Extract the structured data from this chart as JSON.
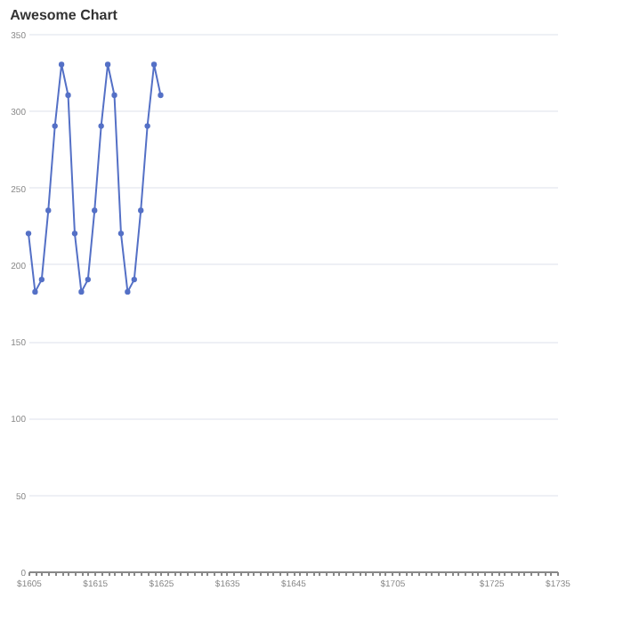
{
  "chart_data": {
    "type": "line",
    "title": "Awesome Chart",
    "categories": [
      "$1605",
      null,
      null,
      null,
      null,
      null,
      null,
      null,
      null,
      null,
      "$1615",
      null,
      null,
      null,
      null,
      null,
      null,
      null,
      null,
      null,
      "$1625",
      null,
      null,
      null,
      null,
      null,
      null,
      null,
      null,
      null,
      "$1635",
      null,
      null,
      null,
      null,
      null,
      null,
      null,
      null,
      null,
      "$1645",
      null,
      null,
      null,
      null,
      null,
      null,
      null,
      null,
      null,
      null,
      null,
      null,
      null,
      null,
      "$1705",
      null,
      null,
      null,
      null,
      null,
      null,
      null,
      null,
      null,
      null,
      null,
      null,
      null,
      null,
      "$1725",
      null,
      null,
      null,
      null,
      null,
      null,
      null,
      null,
      null,
      "$1735"
    ],
    "series": [
      {
        "color": "#5470c6",
        "values": [
          220,
          182,
          190,
          235,
          290,
          330,
          310,
          220,
          182,
          190,
          235,
          290,
          330,
          310,
          220,
          182,
          190,
          235,
          290,
          330,
          310,
          null,
          null,
          null,
          null,
          null,
          null,
          null,
          null,
          null,
          null,
          null,
          null,
          null,
          null,
          null,
          null,
          null,
          null,
          null,
          null,
          null,
          null,
          null,
          null,
          null,
          null,
          null,
          null,
          null,
          null,
          null,
          null,
          null,
          null,
          null,
          null,
          null,
          null,
          null,
          null,
          null,
          null,
          null,
          null,
          null,
          null,
          null,
          null,
          null,
          null,
          null,
          null,
          null,
          null,
          null,
          null,
          null,
          null,
          null,
          null
        ]
      }
    ],
    "ylim": [
      0,
      350
    ],
    "yticks": [
      0,
      50,
      100,
      150,
      200,
      250,
      300,
      350
    ],
    "grid": "y",
    "marker": "circle",
    "line_style": "solid"
  }
}
